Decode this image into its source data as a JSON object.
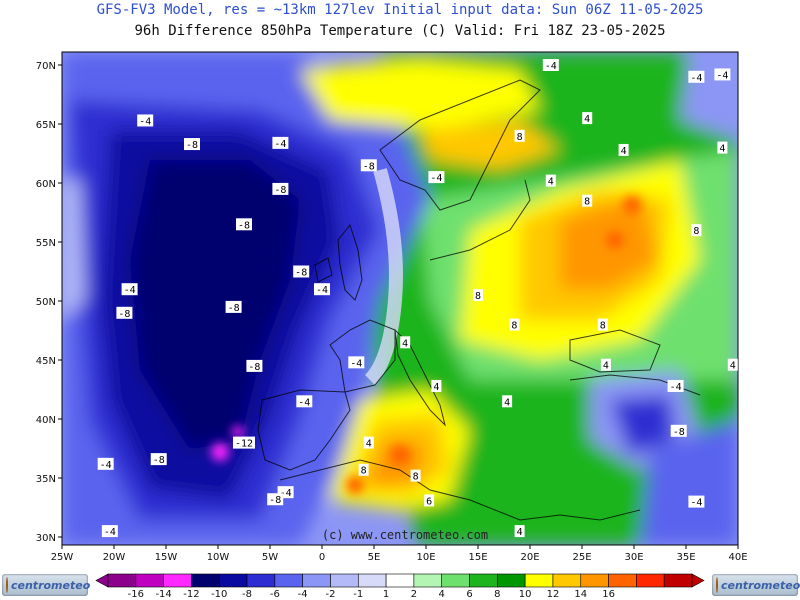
{
  "titles": {
    "line1": "GFS-FV3 Model, res = ~13km 127lev   Initial input data: Sun 06Z 11-05-2025",
    "line2": "96h Difference 850hPa Temperature (C)  Valid: Fri 18Z 23-05-2025"
  },
  "watermark": "(c) www.centrometeo.com",
  "logo": {
    "text": "centrometeo"
  },
  "axes": {
    "lat_labels": [
      "70N",
      "65N",
      "60N",
      "55N",
      "50N",
      "45N",
      "40N",
      "35N",
      "30N"
    ],
    "lon_labels": [
      "25W",
      "20W",
      "15W",
      "10W",
      "5W",
      "0",
      "5E",
      "10E",
      "15E",
      "20E",
      "25E",
      "30E",
      "35E",
      "40E"
    ]
  },
  "legend": {
    "labels": [
      "-16",
      "-14",
      "-12",
      "-10",
      "-8",
      "-6",
      "-4",
      "-2",
      "-1",
      "1",
      "2",
      "4",
      "6",
      "8",
      "10",
      "12",
      "14",
      "16"
    ],
    "colors": [
      "#8c008c",
      "#c000c0",
      "#ff28ff",
      "#00006e",
      "#0a0aa0",
      "#2d2dd2",
      "#5a64ee",
      "#8c96f5",
      "#b4b9f8",
      "#d7daf9",
      "#ffffff",
      "#b4f5b4",
      "#6ee06e",
      "#1eb41e",
      "#009600",
      "#ffff00",
      "#ffc800",
      "#ff9600",
      "#ff6400",
      "#ff2800",
      "#c00000"
    ]
  },
  "contour_labels": [
    {
      "text": "-4",
      "lat": 70.0,
      "lon": 22.0
    },
    {
      "text": "-4",
      "lat": 69.0,
      "lon": 36.0
    },
    {
      "text": "-4",
      "lat": 69.2,
      "lon": 38.5
    },
    {
      "text": "4",
      "lat": 65.5,
      "lon": 25.5
    },
    {
      "text": "8",
      "lat": 64.0,
      "lon": 19.0
    },
    {
      "text": "4",
      "lat": 62.8,
      "lon": 29.0
    },
    {
      "text": "4",
      "lat": 63.0,
      "lon": 38.5
    },
    {
      "text": "-4",
      "lat": 65.3,
      "lon": -17.0
    },
    {
      "text": "-8",
      "lat": 63.3,
      "lon": -12.5
    },
    {
      "text": "-4",
      "lat": 63.4,
      "lon": -4.0
    },
    {
      "text": "-8",
      "lat": 61.5,
      "lon": 4.5
    },
    {
      "text": "-4",
      "lat": 60.5,
      "lon": 11.0
    },
    {
      "text": "4",
      "lat": 60.2,
      "lon": 22.0
    },
    {
      "text": "8",
      "lat": 58.5,
      "lon": 25.5
    },
    {
      "text": "8",
      "lat": 56.0,
      "lon": 36.0
    },
    {
      "text": "-8",
      "lat": 59.5,
      "lon": -4.0
    },
    {
      "text": "-8",
      "lat": 56.5,
      "lon": -7.5
    },
    {
      "text": "-8",
      "lat": 52.5,
      "lon": -2.0
    },
    {
      "text": "-4",
      "lat": 51.0,
      "lon": 0.0
    },
    {
      "text": "-4",
      "lat": 51.0,
      "lon": -18.5
    },
    {
      "text": "-8",
      "lat": 49.5,
      "lon": -8.5
    },
    {
      "text": "-8",
      "lat": 49.0,
      "lon": -19.0
    },
    {
      "text": "8",
      "lat": 50.5,
      "lon": 15.0
    },
    {
      "text": "8",
      "lat": 48.0,
      "lon": 18.5
    },
    {
      "text": "8",
      "lat": 48.0,
      "lon": 27.0
    },
    {
      "text": "4",
      "lat": 46.5,
      "lon": 8.0
    },
    {
      "text": "-4",
      "lat": 44.8,
      "lon": 3.3
    },
    {
      "text": "-8",
      "lat": 44.5,
      "lon": -6.5
    },
    {
      "text": "4",
      "lat": 44.6,
      "lon": 27.3
    },
    {
      "text": "4",
      "lat": 44.6,
      "lon": 39.5
    },
    {
      "text": "4",
      "lat": 42.8,
      "lon": 11.0
    },
    {
      "text": "4",
      "lat": 41.5,
      "lon": 17.8
    },
    {
      "text": "-4",
      "lat": 42.8,
      "lon": 34.0
    },
    {
      "text": "-4",
      "lat": 41.5,
      "lon": -1.7
    },
    {
      "text": "-8",
      "lat": 39.0,
      "lon": 34.3
    },
    {
      "text": "-12",
      "lat": 38.0,
      "lon": -7.5
    },
    {
      "text": "-8",
      "lat": 36.6,
      "lon": -15.7
    },
    {
      "text": "-4",
      "lat": 36.2,
      "lon": -20.8
    },
    {
      "text": "4",
      "lat": 38.0,
      "lon": 4.5
    },
    {
      "text": "8",
      "lat": 35.7,
      "lon": 4.0
    },
    {
      "text": "8",
      "lat": 35.2,
      "lon": 9.0
    },
    {
      "text": "-4",
      "lat": 33.8,
      "lon": -3.5
    },
    {
      "text": "-8",
      "lat": 33.2,
      "lon": -4.5
    },
    {
      "text": "6",
      "lat": 33.1,
      "lon": 10.3
    },
    {
      "text": "-4",
      "lat": 33.0,
      "lon": 36.0
    },
    {
      "text": "-4",
      "lat": 30.5,
      "lon": -20.4
    },
    {
      "text": "4",
      "lat": 30.5,
      "lon": 19.0
    }
  ]
}
